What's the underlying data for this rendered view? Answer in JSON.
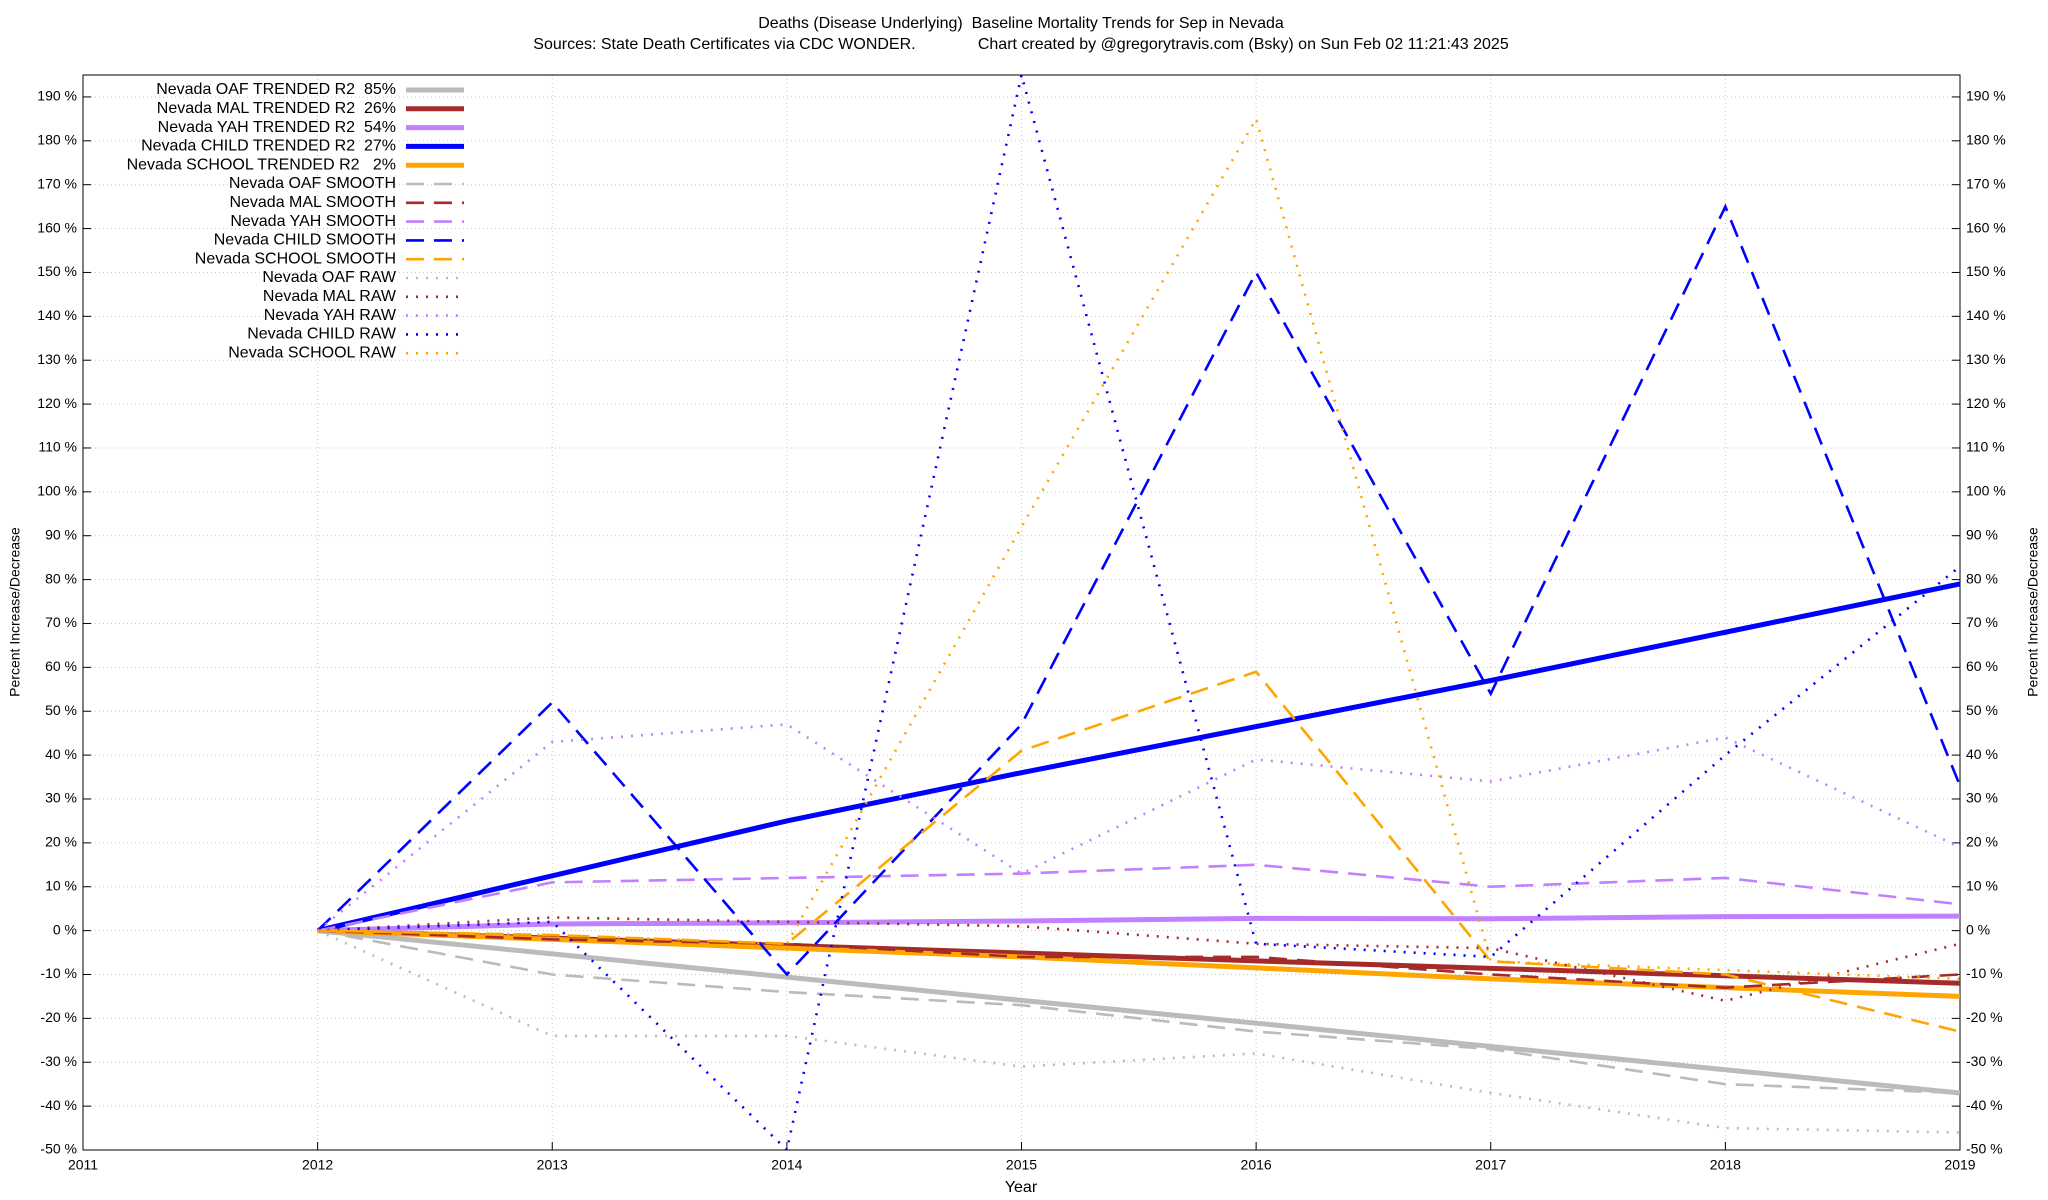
{
  "chart_data": {
    "type": "line",
    "title": "Deaths (Disease Underlying)  Baseline Mortality Trends for Sep in Nevada",
    "subtitle": "Sources: State Death Certificates via CDC WONDER.              Chart created by @gregorytravis.com (Bsky) on Sun Feb 02 11:21:43 2025",
    "x_label": "Year",
    "y_label": "Percent Increase/Decrease",
    "y2_label": "Percent Increase/Decrease",
    "x": [
      2012,
      2013,
      2014,
      2015,
      2016,
      2017,
      2018,
      2019
    ],
    "xlim": [
      2011,
      2019
    ],
    "xticks": [
      2011,
      2012,
      2013,
      2014,
      2015,
      2016,
      2017,
      2018,
      2019
    ],
    "ylim": [
      -50,
      195
    ],
    "yticks": [
      {
        "value": -50,
        "label": "-50 %"
      },
      {
        "value": -40,
        "label": "-40 %"
      },
      {
        "value": -30,
        "label": "-30 %"
      },
      {
        "value": -20,
        "label": "-20 %"
      },
      {
        "value": -10,
        "label": "-10 %"
      },
      {
        "value": 0,
        "label": "0 %"
      },
      {
        "value": 10,
        "label": "10 %"
      },
      {
        "value": 20,
        "label": "20 %"
      },
      {
        "value": 30,
        "label": "30 %"
      },
      {
        "value": 40,
        "label": "40 %"
      },
      {
        "value": 50,
        "label": "50 %"
      },
      {
        "value": 60,
        "label": "60 %"
      },
      {
        "value": 70,
        "label": "70 %"
      },
      {
        "value": 80,
        "label": "80 %"
      },
      {
        "value": 90,
        "label": "90 %"
      },
      {
        "value": 100,
        "label": "100 %"
      },
      {
        "value": 110,
        "label": "110 %"
      },
      {
        "value": 120,
        "label": "120 %"
      },
      {
        "value": 130,
        "label": "130 %"
      },
      {
        "value": 140,
        "label": "140 %"
      },
      {
        "value": 150,
        "label": "150 %"
      },
      {
        "value": 160,
        "label": "160 %"
      },
      {
        "value": 170,
        "label": "170 %"
      },
      {
        "value": 180,
        "label": "180 %"
      },
      {
        "value": 190,
        "label": "190 %"
      }
    ],
    "y2lim": [
      -50,
      195
    ],
    "y2ticks": [
      {
        "value": -50,
        "label": "-50 %"
      },
      {
        "value": -40,
        "label": "-40 %"
      },
      {
        "value": -30,
        "label": "-30 %"
      },
      {
        "value": -20,
        "label": "-20 %"
      },
      {
        "value": -10,
        "label": "-10 %"
      },
      {
        "value": 0,
        "label": "0 %"
      },
      {
        "value": 10,
        "label": "10 %"
      },
      {
        "value": 20,
        "label": "20 %"
      },
      {
        "value": 30,
        "label": "30 %"
      },
      {
        "value": 40,
        "label": "40 %"
      },
      {
        "value": 50,
        "label": "50 %"
      },
      {
        "value": 60,
        "label": "60 %"
      },
      {
        "value": 70,
        "label": "70 %"
      },
      {
        "value": 80,
        "label": "80 %"
      },
      {
        "value": 90,
        "label": "90 %"
      },
      {
        "value": 100,
        "label": "100 %"
      },
      {
        "value": 110,
        "label": "110 %"
      },
      {
        "value": 120,
        "label": "120 %"
      },
      {
        "value": 130,
        "label": "130 %"
      },
      {
        "value": 140,
        "label": "140 %"
      },
      {
        "value": 150,
        "label": "150 %"
      },
      {
        "value": 160,
        "label": "160 %"
      },
      {
        "value": 170,
        "label": "170 %"
      },
      {
        "value": 180,
        "label": "180 %"
      },
      {
        "value": 190,
        "label": "190 %"
      }
    ],
    "grid": true,
    "legend": "top-left",
    "series": [
      {
        "name": "Nevada OAF TRENDED R2  85%",
        "color": "#bbbbbb",
        "style": "solid",
        "values": [
          0,
          -5.3,
          -10.6,
          -15.9,
          -21.1,
          -26.4,
          -31.7,
          -37
        ]
      },
      {
        "name": "Nevada MAL TRENDED R2  26%",
        "color": "#a52a2a",
        "style": "solid",
        "values": [
          0,
          -1.7,
          -3.4,
          -5.1,
          -6.9,
          -8.6,
          -10.3,
          -12
        ]
      },
      {
        "name": "Nevada YAH TRENDED R2  54%",
        "color": "#c080ff",
        "style": "solid",
        "values": [
          0,
          1.5,
          1.8,
          2.2,
          2.8,
          2.7,
          3.2,
          3.3
        ]
      },
      {
        "name": "Nevada CHILD TRENDED R2  27%",
        "color": "#0000ff",
        "style": "solid",
        "values": [
          0,
          12.5,
          25,
          36,
          46.5,
          57,
          68,
          79
        ]
      },
      {
        "name": "Nevada SCHOOL TRENDED R2   2%",
        "color": "#ffa500",
        "style": "solid",
        "values": [
          0,
          -2,
          -4,
          -6,
          -8.5,
          -11,
          -13,
          -15
        ]
      },
      {
        "name": "Nevada OAF SMOOTH",
        "color": "#bbbbbb",
        "style": "dashed",
        "values": [
          0,
          -10,
          -14,
          -17,
          -23,
          -27,
          -35,
          -37
        ]
      },
      {
        "name": "Nevada MAL SMOOTH",
        "color": "#a52a2a",
        "style": "dashed",
        "values": [
          0,
          -2,
          -3,
          -6,
          -6,
          -10,
          -13,
          -10
        ]
      },
      {
        "name": "Nevada YAH SMOOTH",
        "color": "#c080ff",
        "style": "dashed",
        "values": [
          0,
          11,
          12,
          13,
          15,
          10,
          12,
          6
        ]
      },
      {
        "name": "Nevada CHILD SMOOTH",
        "color": "#0000ff",
        "style": "dashed",
        "values": [
          0,
          52,
          -10,
          47,
          150,
          54,
          165,
          33
        ]
      },
      {
        "name": "Nevada SCHOOL SMOOTH",
        "color": "#ffa500",
        "style": "dashed",
        "values": [
          0,
          -1,
          -3,
          41,
          59,
          -7,
          -10,
          -23
        ]
      },
      {
        "name": "Nevada OAF RAW",
        "color": "#bbbbbb",
        "style": "dotted",
        "values": [
          0,
          -24,
          -24,
          -31,
          -28,
          -37,
          -45,
          -46
        ]
      },
      {
        "name": "Nevada MAL RAW",
        "color": "#a52a2a",
        "style": "dotted",
        "values": [
          0,
          3,
          2,
          1,
          -3,
          -4,
          -16,
          -3
        ]
      },
      {
        "name": "Nevada YAH RAW",
        "color": "#c080ff",
        "style": "dotted",
        "values": [
          0,
          43,
          47,
          13,
          39,
          34,
          44,
          19
        ]
      },
      {
        "name": "Nevada CHILD RAW",
        "color": "#0000ff",
        "style": "dotted",
        "values": [
          0,
          2,
          -50,
          195,
          -3,
          -6,
          40,
          83
        ]
      },
      {
        "name": "Nevada SCHOOL RAW",
        "color": "#ffa500",
        "style": "dotted",
        "values": [
          0,
          -1,
          -3,
          92,
          185,
          -7,
          -9,
          -11
        ]
      }
    ]
  }
}
